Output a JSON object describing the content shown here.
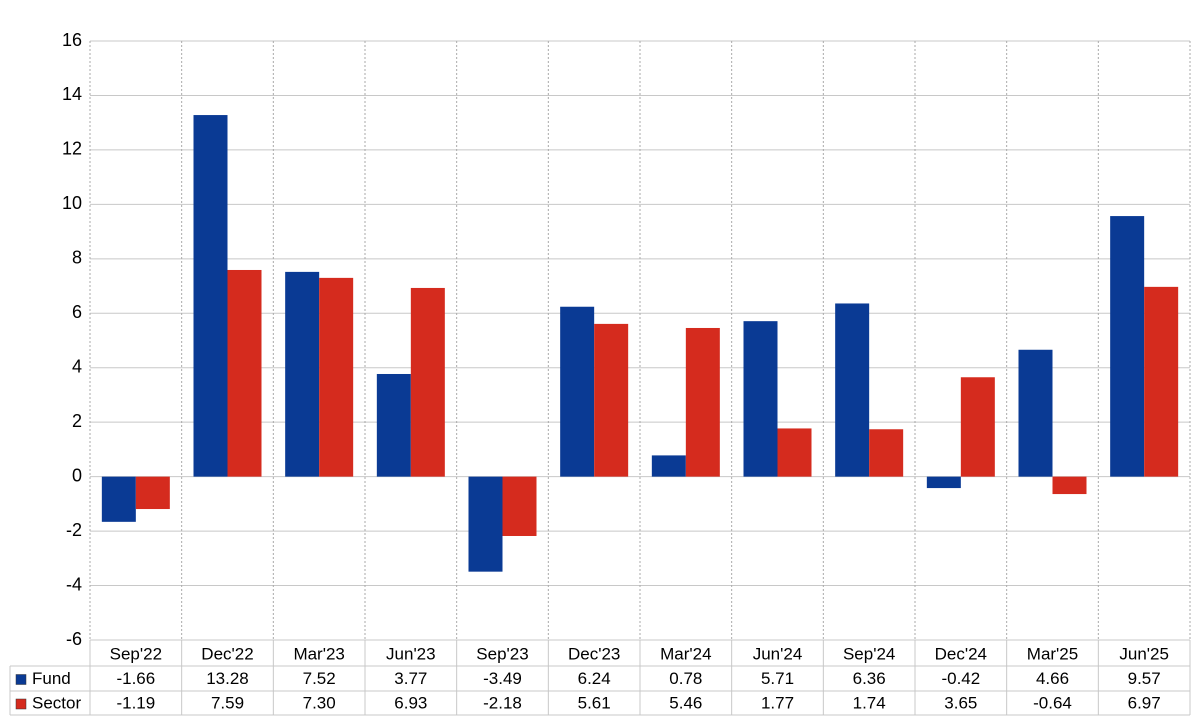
{
  "chart_data": {
    "type": "bar",
    "categories": [
      "Sep'22",
      "Dec'22",
      "Mar'23",
      "Jun'23",
      "Sep'23",
      "Dec'23",
      "Mar'24",
      "Jun'24",
      "Sep'24",
      "Dec'24",
      "Mar'25",
      "Jun'25"
    ],
    "series": [
      {
        "name": "Fund",
        "color": "#0a3a94",
        "values": [
          -1.66,
          13.28,
          7.52,
          3.77,
          -3.49,
          6.24,
          0.78,
          5.71,
          6.36,
          -0.42,
          4.66,
          9.57
        ],
        "value_labels": [
          "-1.66",
          "13.28",
          "7.52",
          "3.77",
          "-3.49",
          "6.24",
          "0.78",
          "5.71",
          "6.36",
          "-0.42",
          "4.66",
          "9.57"
        ]
      },
      {
        "name": "Sector",
        "color": "#d52b1e",
        "values": [
          -1.19,
          7.59,
          7.3,
          6.93,
          -2.18,
          5.61,
          5.46,
          1.77,
          1.74,
          3.65,
          -0.64,
          6.97
        ],
        "value_labels": [
          "-1.19",
          "7.59",
          "7.30",
          "6.93",
          "-2.18",
          "5.61",
          "5.46",
          "1.77",
          "1.74",
          "3.65",
          "-0.64",
          "6.97"
        ]
      }
    ],
    "ylim": [
      -6,
      16
    ],
    "yticks": [
      -6,
      -4,
      -2,
      0,
      2,
      4,
      6,
      8,
      10,
      12,
      14,
      16
    ],
    "grid": true,
    "negative_label_color": "#ff0000"
  }
}
